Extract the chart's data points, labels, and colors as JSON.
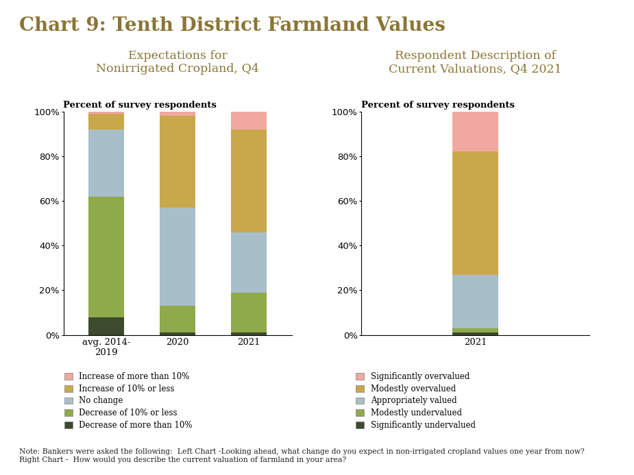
{
  "title": "Chart 9: Tenth District Farmland Values",
  "title_color": "#8B7536",
  "title_fontsize": 20,
  "left_subtitle": "Expectations for\nNonirrigated Cropland, Q4",
  "right_subtitle": "Respondent Description of\nCurrent Valuations, Q4 2021",
  "subtitle_color": "#8B7536",
  "subtitle_fontsize": 12.5,
  "left_categories": [
    "avg. 2014-\n2019",
    "2020",
    "2021"
  ],
  "left_order": [
    "Decrease of more than 10%",
    "Decrease of 10% or less",
    "No change",
    "Increase of 10% or less",
    "Increase of more than 10%"
  ],
  "left_series": {
    "Decrease of more than 10%": [
      8,
      1,
      1
    ],
    "Decrease of 10% or less": [
      54,
      12,
      18
    ],
    "No change": [
      30,
      44,
      27
    ],
    "Increase of 10% or less": [
      7,
      41,
      46
    ],
    "Increase of more than 10%": [
      1,
      2,
      8
    ]
  },
  "left_colors": {
    "Decrease of more than 10%": "#3d4a2e",
    "Decrease of 10% or less": "#8faa4b",
    "No change": "#a8bfc9",
    "Increase of 10% or less": "#c9a84c",
    "Increase of more than 10%": "#f0a8a0"
  },
  "right_categories": [
    "2021"
  ],
  "right_order": [
    "Significantly undervalued",
    "Modestly undervalued",
    "Appropriately valued",
    "Modestly overvalued",
    "Significantly overvalued"
  ],
  "right_series": {
    "Significantly undervalued": [
      1
    ],
    "Modestly undervalued": [
      2
    ],
    "Appropriately valued": [
      24
    ],
    "Modestly overvalued": [
      55
    ],
    "Significantly overvalued": [
      18
    ]
  },
  "right_colors": {
    "Significantly undervalued": "#3d4a2e",
    "Modestly undervalued": "#8faa4b",
    "Appropriately valued": "#a8bfc9",
    "Modestly overvalued": "#c9a84c",
    "Significantly overvalued": "#f0a8a0"
  },
  "left_legend_order": [
    "Increase of more than 10%",
    "Increase of 10% or less",
    "No change",
    "Decrease of 10% or less",
    "Decrease of more than 10%"
  ],
  "right_legend_order": [
    "Significantly overvalued",
    "Modestly overvalued",
    "Appropriately valued",
    "Modestly undervalued",
    "Significantly undervalued"
  ],
  "note_line1": "Note: Bankers were asked the following:  Left Chart -Looking ahead, what change do you expect in non-irrigated cropland values one year from now?",
  "note_line2": "Right Chart -  How would you describe the current valuation of farmland in your area?",
  "background_color": "#ffffff"
}
